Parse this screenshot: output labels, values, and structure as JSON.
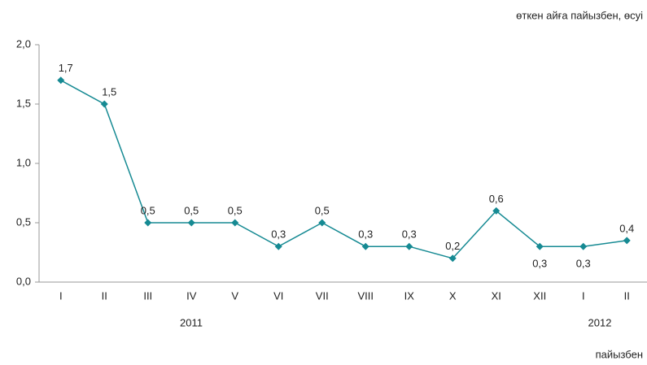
{
  "chart_data": {
    "type": "line",
    "axis_note": "өткен айға пайызбен, өсуі",
    "unit_note": "пайызбен",
    "categories": [
      "I",
      "II",
      "III",
      "IV",
      "V",
      "VI",
      "VII",
      "VIII",
      "IX",
      "X",
      "XI",
      "XII",
      "I",
      "II"
    ],
    "years": [
      "2011",
      "2012"
    ],
    "series": [
      {
        "color": "#168a93",
        "values": [
          1.7,
          1.5,
          0.5,
          0.5,
          0.5,
          0.3,
          0.5,
          0.3,
          0.3,
          0.2,
          0.6,
          0.3,
          0.3,
          0.35
        ],
        "value_labels": [
          "1,7",
          "1,5",
          "0,5",
          "0,5",
          "0,5",
          "0,3",
          "0,5",
          "0,3",
          "0,3",
          "0,2",
          "0,6",
          "0,3",
          "0,3",
          "0,4"
        ]
      }
    ],
    "ylim": [
      0,
      2
    ],
    "yticks": [
      {
        "value": 0,
        "label": "0,0"
      },
      {
        "value": 0.5,
        "label": "0,5"
      },
      {
        "value": 1,
        "label": "1,0"
      },
      {
        "value": 1.5,
        "label": "1,5"
      },
      {
        "value": 2,
        "label": "2,0"
      }
    ],
    "grid": false
  }
}
